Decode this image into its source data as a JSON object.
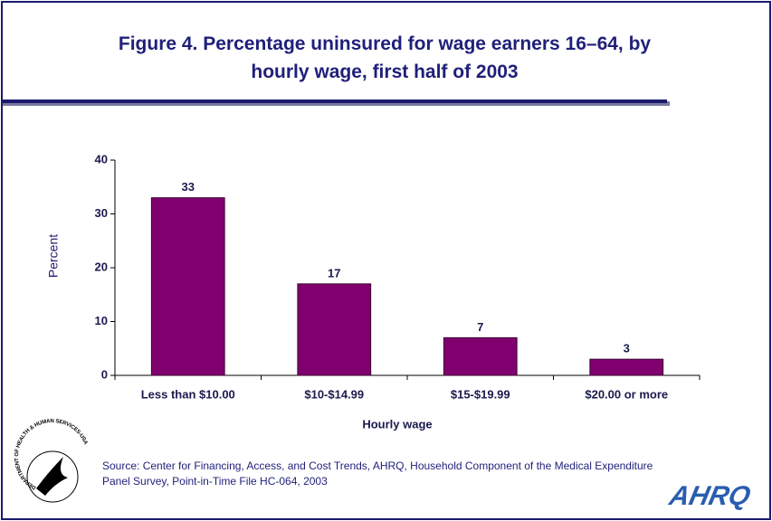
{
  "chart_data": {
    "type": "bar",
    "title": "Figure 4. Percentage uninsured for wage earners 16–64, by hourly wage, first half of 2003",
    "x_label": "Hourly wage",
    "y_label": "Percent",
    "categories": [
      "Less than $10.00",
      "$10-$14.99",
      "$15-$19.99",
      "$20.00 or more"
    ],
    "values": [
      33,
      17,
      7,
      3
    ],
    "color": "#800070",
    "ylim": [
      0,
      40
    ],
    "yticks": [
      0,
      10,
      20,
      30,
      40
    ],
    "grid": false,
    "source": "Source: Center for Financing, Access, and Cost Trends, AHRQ, Household Component of the Medical Expenditure Panel Survey, Point-in-Time File HC-064, 2003"
  },
  "logos": {
    "seal": "DEPARTMENT OF HEALTH & HUMAN SERVICES-USA",
    "agency": "AHRQ"
  }
}
